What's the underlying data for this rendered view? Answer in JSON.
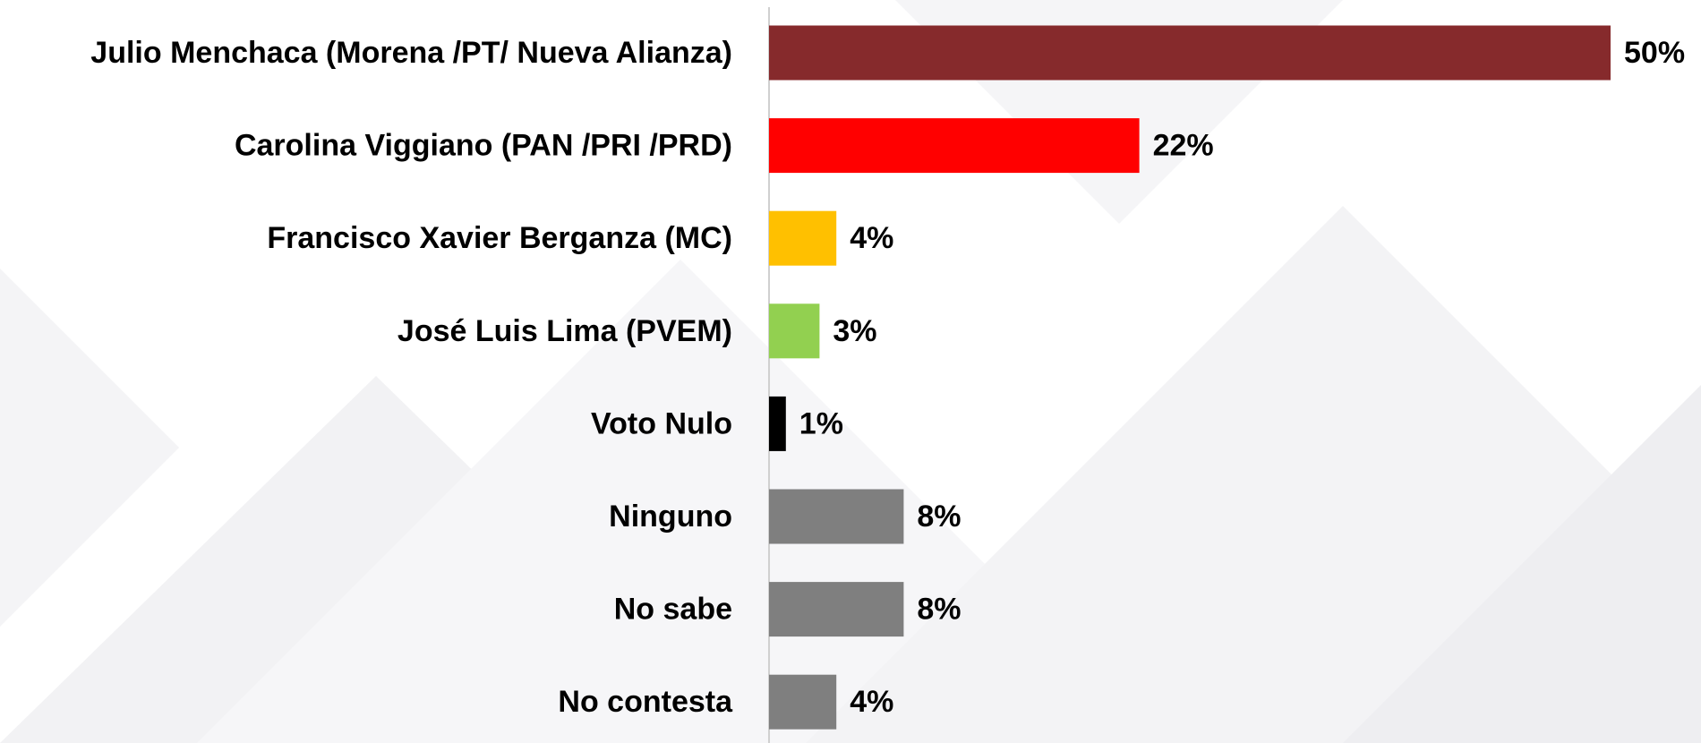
{
  "chart_data": {
    "type": "bar",
    "orientation": "horizontal",
    "categories": [
      "Julio Menchaca (Morena /PT/ Nueva Alianza)",
      "Carolina Viggiano (PAN /PRI /PRD)",
      "Francisco Xavier Berganza (MC)",
      "José Luis Lima (PVEM)",
      "Voto Nulo",
      "Ninguno",
      "No sabe",
      "No contesta"
    ],
    "values": [
      50,
      22,
      4,
      3,
      1,
      8,
      8,
      4
    ],
    "value_labels": [
      "50%",
      "22%",
      "4%",
      "3%",
      "1%",
      "8%",
      "8%",
      "4%"
    ],
    "colors": [
      "#862a2c",
      "#ff0000",
      "#ffc000",
      "#92d050",
      "#000000",
      "#7f7f7f",
      "#7f7f7f",
      "#7f7f7f"
    ]
  }
}
